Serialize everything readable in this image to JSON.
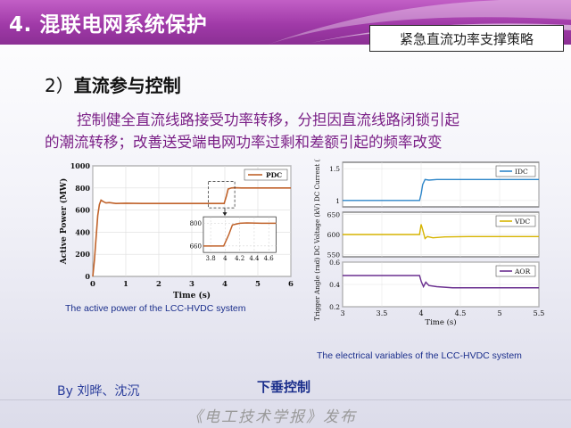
{
  "header": {
    "title": "4. 混联电网系统保护",
    "subtitle": "紧急直流功率支撑策略"
  },
  "section": {
    "number": "2）",
    "title": "直流参与控制"
  },
  "body": {
    "line1": "控制健全直流线路接受功率转移，分担因直流线路闭锁引起",
    "line2": "的潮流转移；改善送受端电网功率过剩和差额引起的频率改变"
  },
  "colors": {
    "accent": "#a03aa8",
    "text_purple": "#7a1f86",
    "caption_blue": "#1b2f8c",
    "pdc_line": "#c0622a",
    "idc_line": "#2e86c9",
    "vdc_line": "#d6b400",
    "aor_line": "#6a2f8f"
  },
  "chart_data": [
    {
      "type": "line",
      "title": "",
      "caption": "The active power of the LCC-HVDC system",
      "xlabel": "Time (s)",
      "ylabel": "Active Power (MW)",
      "xlim": [
        0,
        6
      ],
      "ylim": [
        0,
        1000
      ],
      "xticks": [
        "0",
        "1",
        "2",
        "3",
        "4",
        "5",
        "6"
      ],
      "yticks": [
        "0",
        "200",
        "400",
        "600",
        "800",
        "1000"
      ],
      "grid": true,
      "legend": "top-right",
      "series": [
        {
          "name": "PDC",
          "x": [
            0,
            0.05,
            0.1,
            0.15,
            0.2,
            0.25,
            0.3,
            0.35,
            0.4,
            0.5,
            0.7,
            1.0,
            1.5,
            2.0,
            3.0,
            3.9,
            3.98,
            4.0,
            4.05,
            4.1,
            4.2,
            4.3,
            4.5,
            5.0,
            5.5,
            6.0
          ],
          "y": [
            0,
            150,
            350,
            550,
            650,
            690,
            680,
            672,
            665,
            668,
            660,
            662,
            660,
            660,
            660,
            660,
            660,
            680,
            730,
            790,
            800,
            802,
            800,
            800,
            800,
            800
          ]
        }
      ],
      "inset": {
        "xlim": [
          3.7,
          4.7
        ],
        "ylim": [
          620,
          840
        ],
        "xticks": [
          "3.8",
          "4",
          "4.2",
          "4.4",
          "4.6"
        ],
        "yticks": [
          "660",
          "800"
        ]
      }
    },
    {
      "type": "line",
      "title": "",
      "caption": "The electrical variables of the LCC-HVDC system",
      "xlabel": "Time (s)",
      "xlim": [
        3,
        5.5
      ],
      "xticks": [
        "3",
        "3.5",
        "4",
        "4.5",
        "5",
        "5.5"
      ],
      "legend": "top-right",
      "panels": [
        {
          "ylabel": "DC Current (kA)",
          "ylim": [
            0.9,
            1.6
          ],
          "yticks": [
            "1",
            "1.5"
          ],
          "series": [
            {
              "name": "IDC",
              "x": [
                3,
                3.5,
                3.98,
                4.0,
                4.02,
                4.05,
                4.1,
                4.2,
                4.5,
                5.0,
                5.5
              ],
              "y": [
                1.0,
                1.0,
                1.0,
                1.1,
                1.25,
                1.33,
                1.32,
                1.33,
                1.33,
                1.33,
                1.33
              ]
            }
          ]
        },
        {
          "ylabel": "DC Voltage (kV)",
          "ylim": [
            545,
            655
          ],
          "yticks": [
            "550",
            "600",
            "650"
          ],
          "series": [
            {
              "name": "VDC",
              "x": [
                3,
                3.5,
                3.98,
                4.0,
                4.02,
                4.05,
                4.08,
                4.15,
                4.3,
                4.6,
                5.0,
                5.5
              ],
              "y": [
                600,
                600,
                600,
                625,
                612,
                590,
                595,
                592,
                594,
                595,
                595,
                595
              ]
            }
          ]
        },
        {
          "ylabel": "Trigger Angle (rad)",
          "ylim": [
            0.2,
            0.6
          ],
          "yticks": [
            "0.2",
            "0.4",
            "0.6"
          ],
          "series": [
            {
              "name": "AOR",
              "x": [
                3,
                3.5,
                3.98,
                4.0,
                4.03,
                4.06,
                4.1,
                4.2,
                4.4,
                4.7,
                5.0,
                5.5
              ],
              "y": [
                0.48,
                0.48,
                0.48,
                0.43,
                0.38,
                0.42,
                0.39,
                0.38,
                0.37,
                0.37,
                0.37,
                0.37
              ]
            }
          ]
        }
      ]
    }
  ],
  "footer": {
    "author": "By 刘晔、沈沉",
    "publisher": "下垂控制",
    "journal": "《电工技术学报》发布"
  }
}
